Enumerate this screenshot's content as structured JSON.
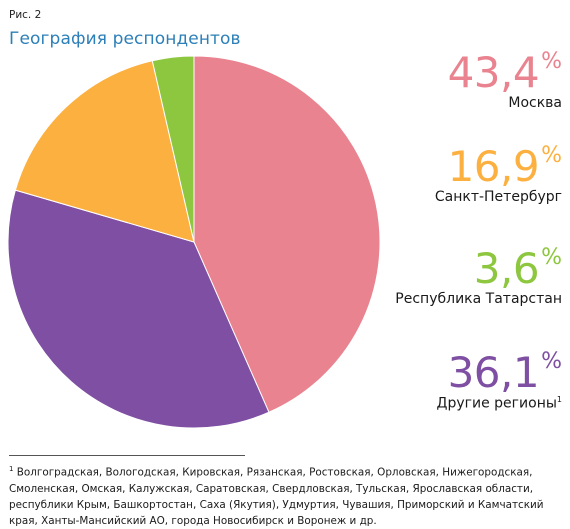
{
  "figure_label": "Рис. 2",
  "chart_data": {
    "type": "pie",
    "title": "География респондентов",
    "slices": [
      {
        "label": "Москва",
        "value": 43.4,
        "value_text": "43,4",
        "color": "#e8838f"
      },
      {
        "label": "Другие регионы",
        "value": 36.1,
        "value_text": "36,1",
        "color": "#7e4fa2",
        "note_mark": "1"
      },
      {
        "label": "Санкт-Петербург",
        "value": 16.9,
        "value_text": "16,9",
        "color": "#fbb040"
      },
      {
        "label": "Республика Татарстан",
        "value": 3.6,
        "value_text": "3,6",
        "color": "#8dc63f"
      }
    ],
    "percent_sign": "%"
  },
  "footnote": {
    "mark": "1",
    "text": "Волгоградская, Вологодская, Кировская, Рязанская, Ростовская, Орловская, Нижегородская, Смоленская, Омская, Калужская, Саратовская, Свердловская, Тульская, Ярославская области, республики  Крым, Башкортостан, Саха (Якутия), Удмуртия, Чувашия, Приморский и Камчатский края, Ханты-Мансийский АО, города Новосибирск и Воронеж и др."
  }
}
